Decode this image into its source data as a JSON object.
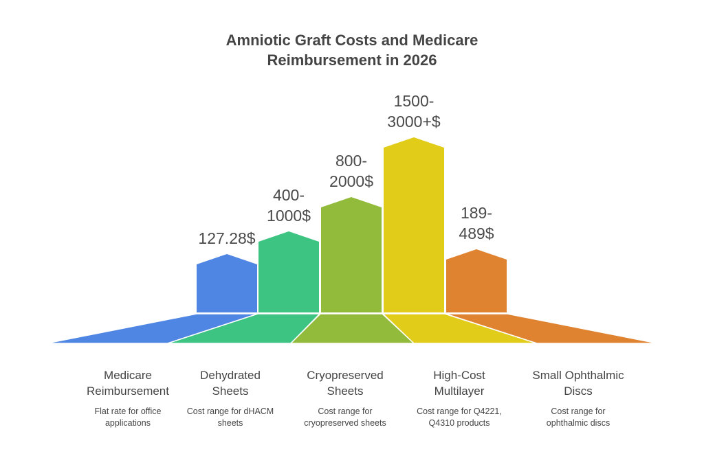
{
  "chart_data": {
    "type": "bar",
    "title": [
      "Amniotic Graft Costs and Medicare",
      "Reimbursement in 2026"
    ],
    "categories": [
      {
        "name": "Medicare Reimbursement",
        "description": "Flat rate for office applications",
        "value_label": "127.28$",
        "low": 127.28,
        "high": 127.28,
        "color": "#4f86e3"
      },
      {
        "name": "Dehydrated Sheets",
        "description": "Cost range for dHACM sheets",
        "value_label": "400-1000$",
        "low": 400,
        "high": 1000,
        "color": "#3ec482"
      },
      {
        "name": "Cryopreserved Sheets",
        "description": "Cost range for cryopreserved sheets",
        "value_label": "800-2000$",
        "low": 800,
        "high": 2000,
        "color": "#93bb3b"
      },
      {
        "name": "High-Cost Multilayer",
        "description": "Cost range for Q4221, Q4310 products",
        "value_label": "1500-3000+$",
        "low": 1500,
        "high": 3000,
        "color": "#e0cc19"
      },
      {
        "name": "Small Ophthalmic Discs",
        "description": "Cost range for ophthalmic discs",
        "value_label": "189-489$",
        "low": 189,
        "high": 489,
        "color": "#e08330"
      }
    ]
  }
}
